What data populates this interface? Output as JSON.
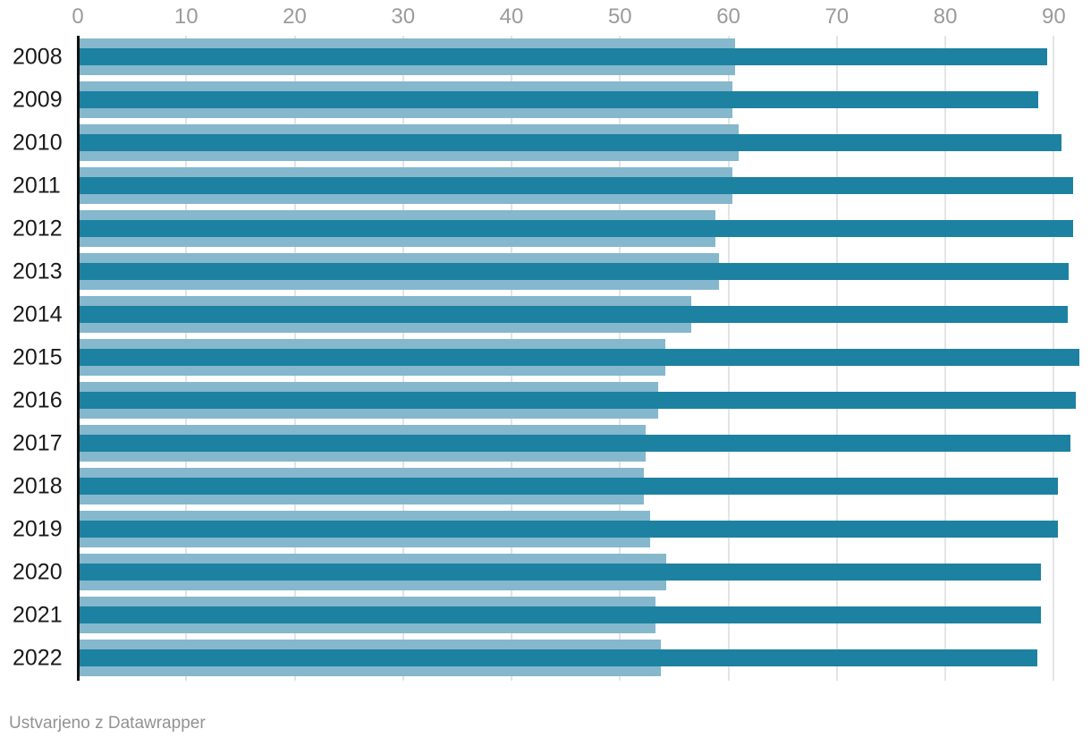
{
  "footer": {
    "credit": "Ustvarjeno z Datawrapper"
  },
  "colors": {
    "background": "#ffffff",
    "light_bar": "#85b7cd",
    "dark_bar": "#1d81a1",
    "gridline": "#e4e4e4",
    "axis_line": "#111111",
    "tick_label": "#9b9b9b",
    "year_label": "#1a1a1a",
    "credit_text": "#929292"
  },
  "chart_data": {
    "type": "bar",
    "orientation": "horizontal",
    "title": "",
    "xlabel": "",
    "ylabel": "",
    "grid": true,
    "legend": false,
    "footer_note": "Ustvarjeno z Datawrapper",
    "x_axis": {
      "min": 0,
      "max": 93.4,
      "ticks": [
        0,
        10,
        20,
        30,
        40,
        50,
        60,
        70,
        80,
        90
      ],
      "tick_labels": [
        "0",
        "10",
        "20",
        "30",
        "40",
        "50",
        "60",
        "70",
        "80",
        "90"
      ]
    },
    "categories": [
      "2008",
      "2009",
      "2010",
      "2011",
      "2012",
      "2013",
      "2014",
      "2015",
      "2016",
      "2017",
      "2018",
      "2019",
      "2020",
      "2021",
      "2022"
    ],
    "series": [
      {
        "name": "light-blue-bar",
        "color_key": "light_bar",
        "values": [
          60.6,
          60.4,
          60.9,
          60.4,
          58.8,
          59.1,
          56.6,
          54.2,
          53.5,
          52.4,
          52.2,
          52.8,
          54.3,
          53.3,
          53.8
        ]
      },
      {
        "name": "dark-teal-bar",
        "color_key": "dark_bar",
        "values": [
          89.4,
          88.6,
          90.7,
          91.8,
          91.8,
          91.4,
          91.3,
          92.4,
          92.0,
          91.5,
          90.4,
          90.4,
          88.8,
          88.8,
          88.5
        ]
      }
    ]
  }
}
